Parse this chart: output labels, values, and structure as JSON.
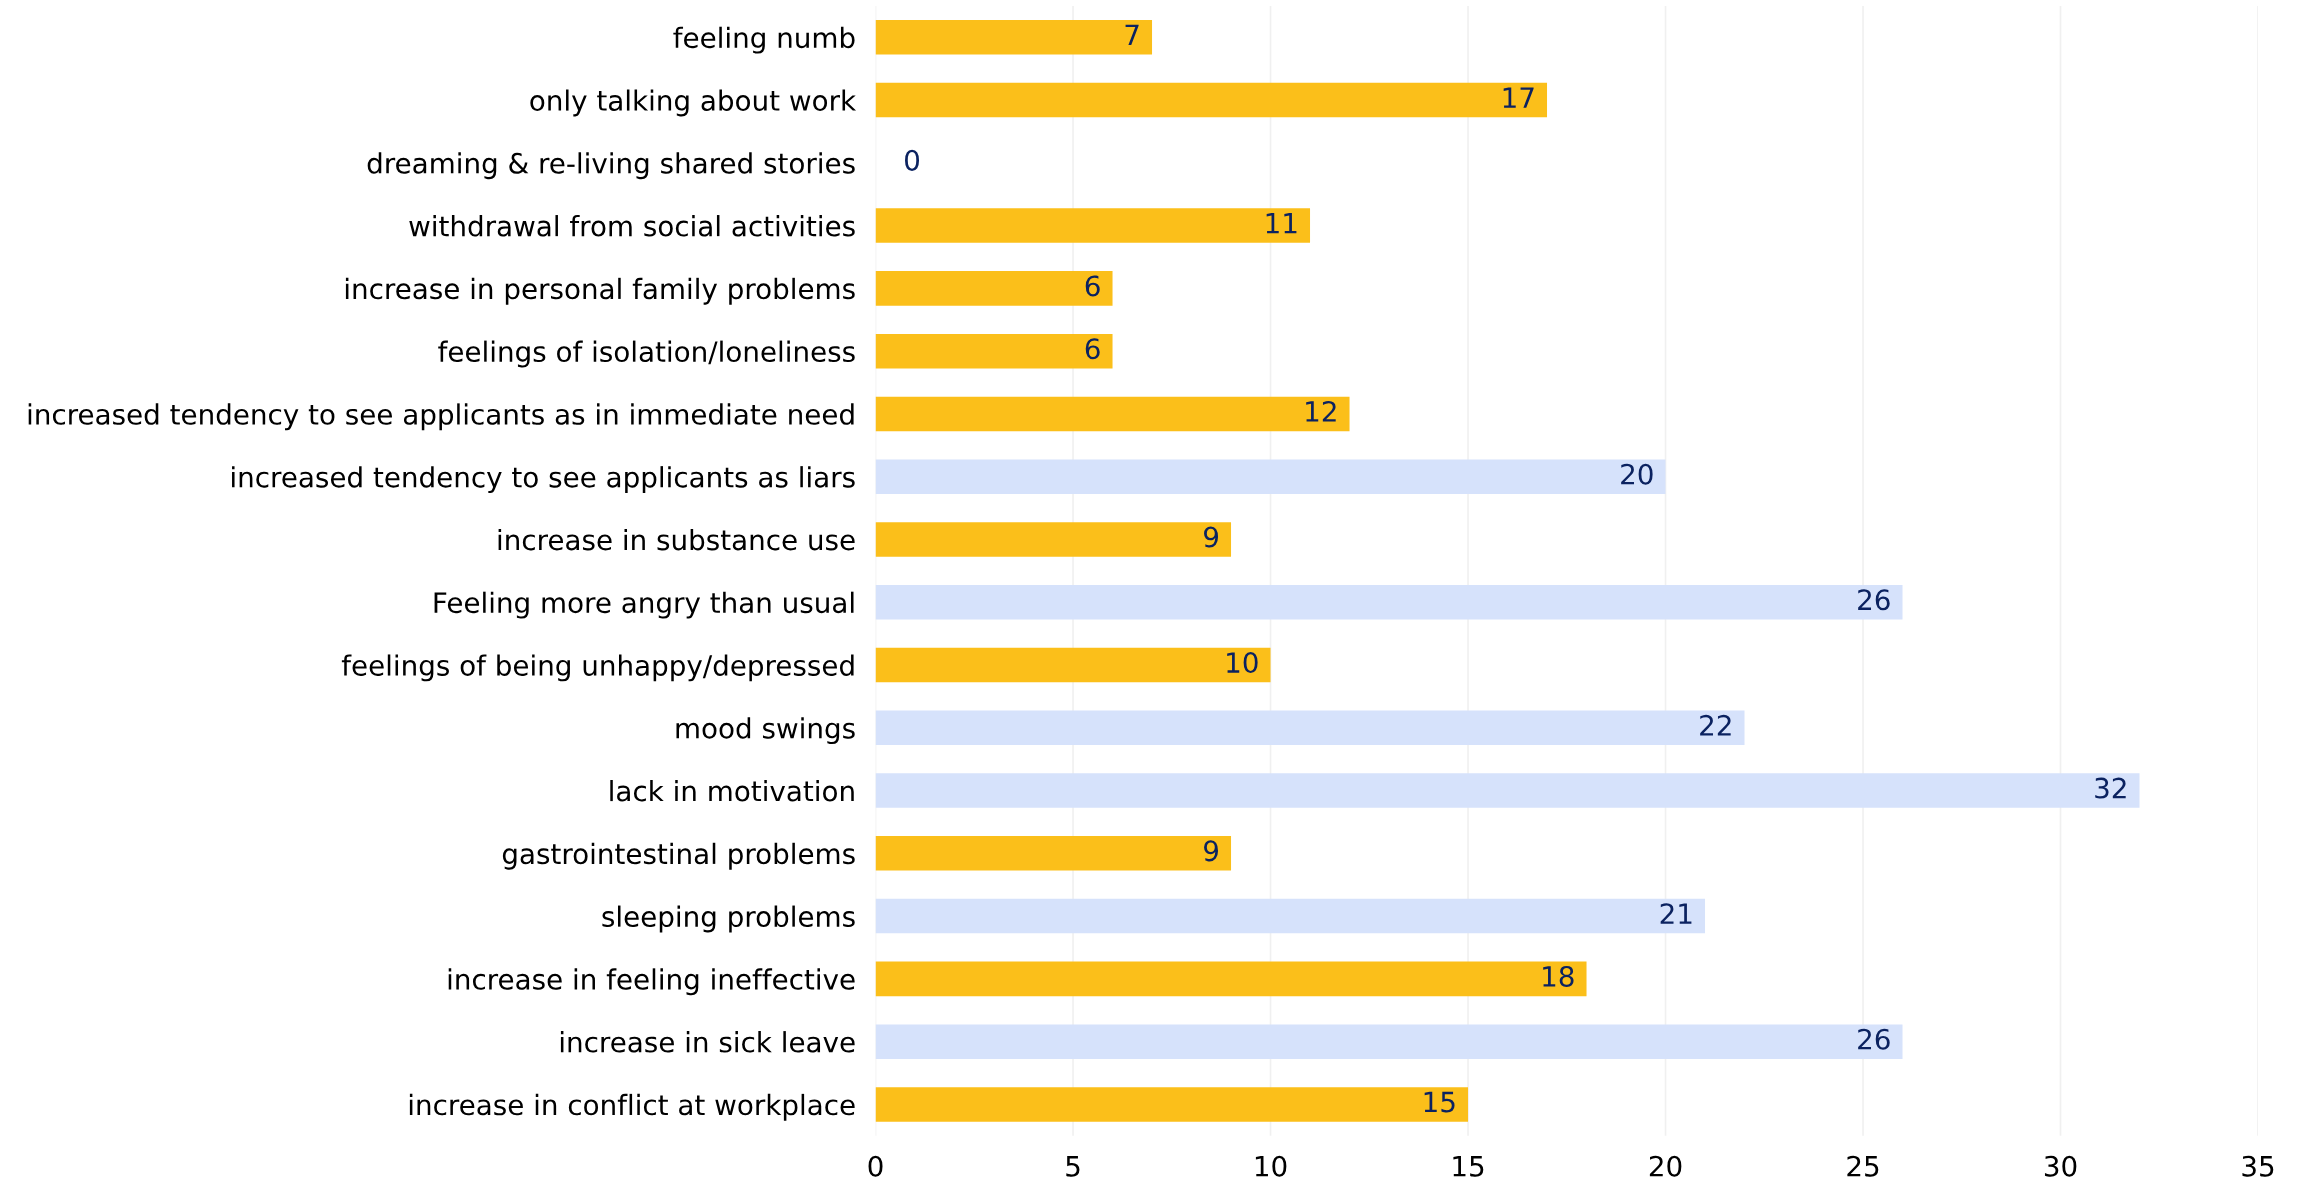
{
  "chart_data": {
    "type": "bar",
    "orientation": "horizontal",
    "categories": [
      "feeling numb",
      "only talking about work",
      "dreaming & re-living shared stories",
      "withdrawal from social activities",
      "increase in personal family problems",
      "feelings of isolation/loneliness",
      "increased tendency to see applicants as in immediate need",
      "increased tendency to see applicants as liars",
      "increase in substance use",
      "Feeling more angry than usual",
      "feelings of being unhappy/depressed",
      "mood swings",
      "lack in motivation",
      "gastrointestinal problems",
      "sleeping problems",
      "increase in feeling ineffective",
      "increase in sick leave",
      "increase in conflict at workplace"
    ],
    "values": [
      7,
      17,
      0,
      11,
      6,
      6,
      12,
      20,
      9,
      26,
      10,
      22,
      32,
      9,
      21,
      18,
      26,
      15
    ],
    "colors": [
      "#fbbf1a",
      "#fbbf1a",
      "#fbbf1a",
      "#fbbf1a",
      "#fbbf1a",
      "#fbbf1a",
      "#fbbf1a",
      "#d6e2fb",
      "#fbbf1a",
      "#d6e2fb",
      "#fbbf1a",
      "#d6e2fb",
      "#d6e2fb",
      "#fbbf1a",
      "#d6e2fb",
      "#fbbf1a",
      "#d6e2fb",
      "#fbbf1a"
    ],
    "xlim": [
      0,
      35
    ],
    "xticks": [
      0,
      5,
      10,
      15,
      20,
      25,
      30,
      35
    ],
    "grid": "x",
    "data_labels": true
  }
}
